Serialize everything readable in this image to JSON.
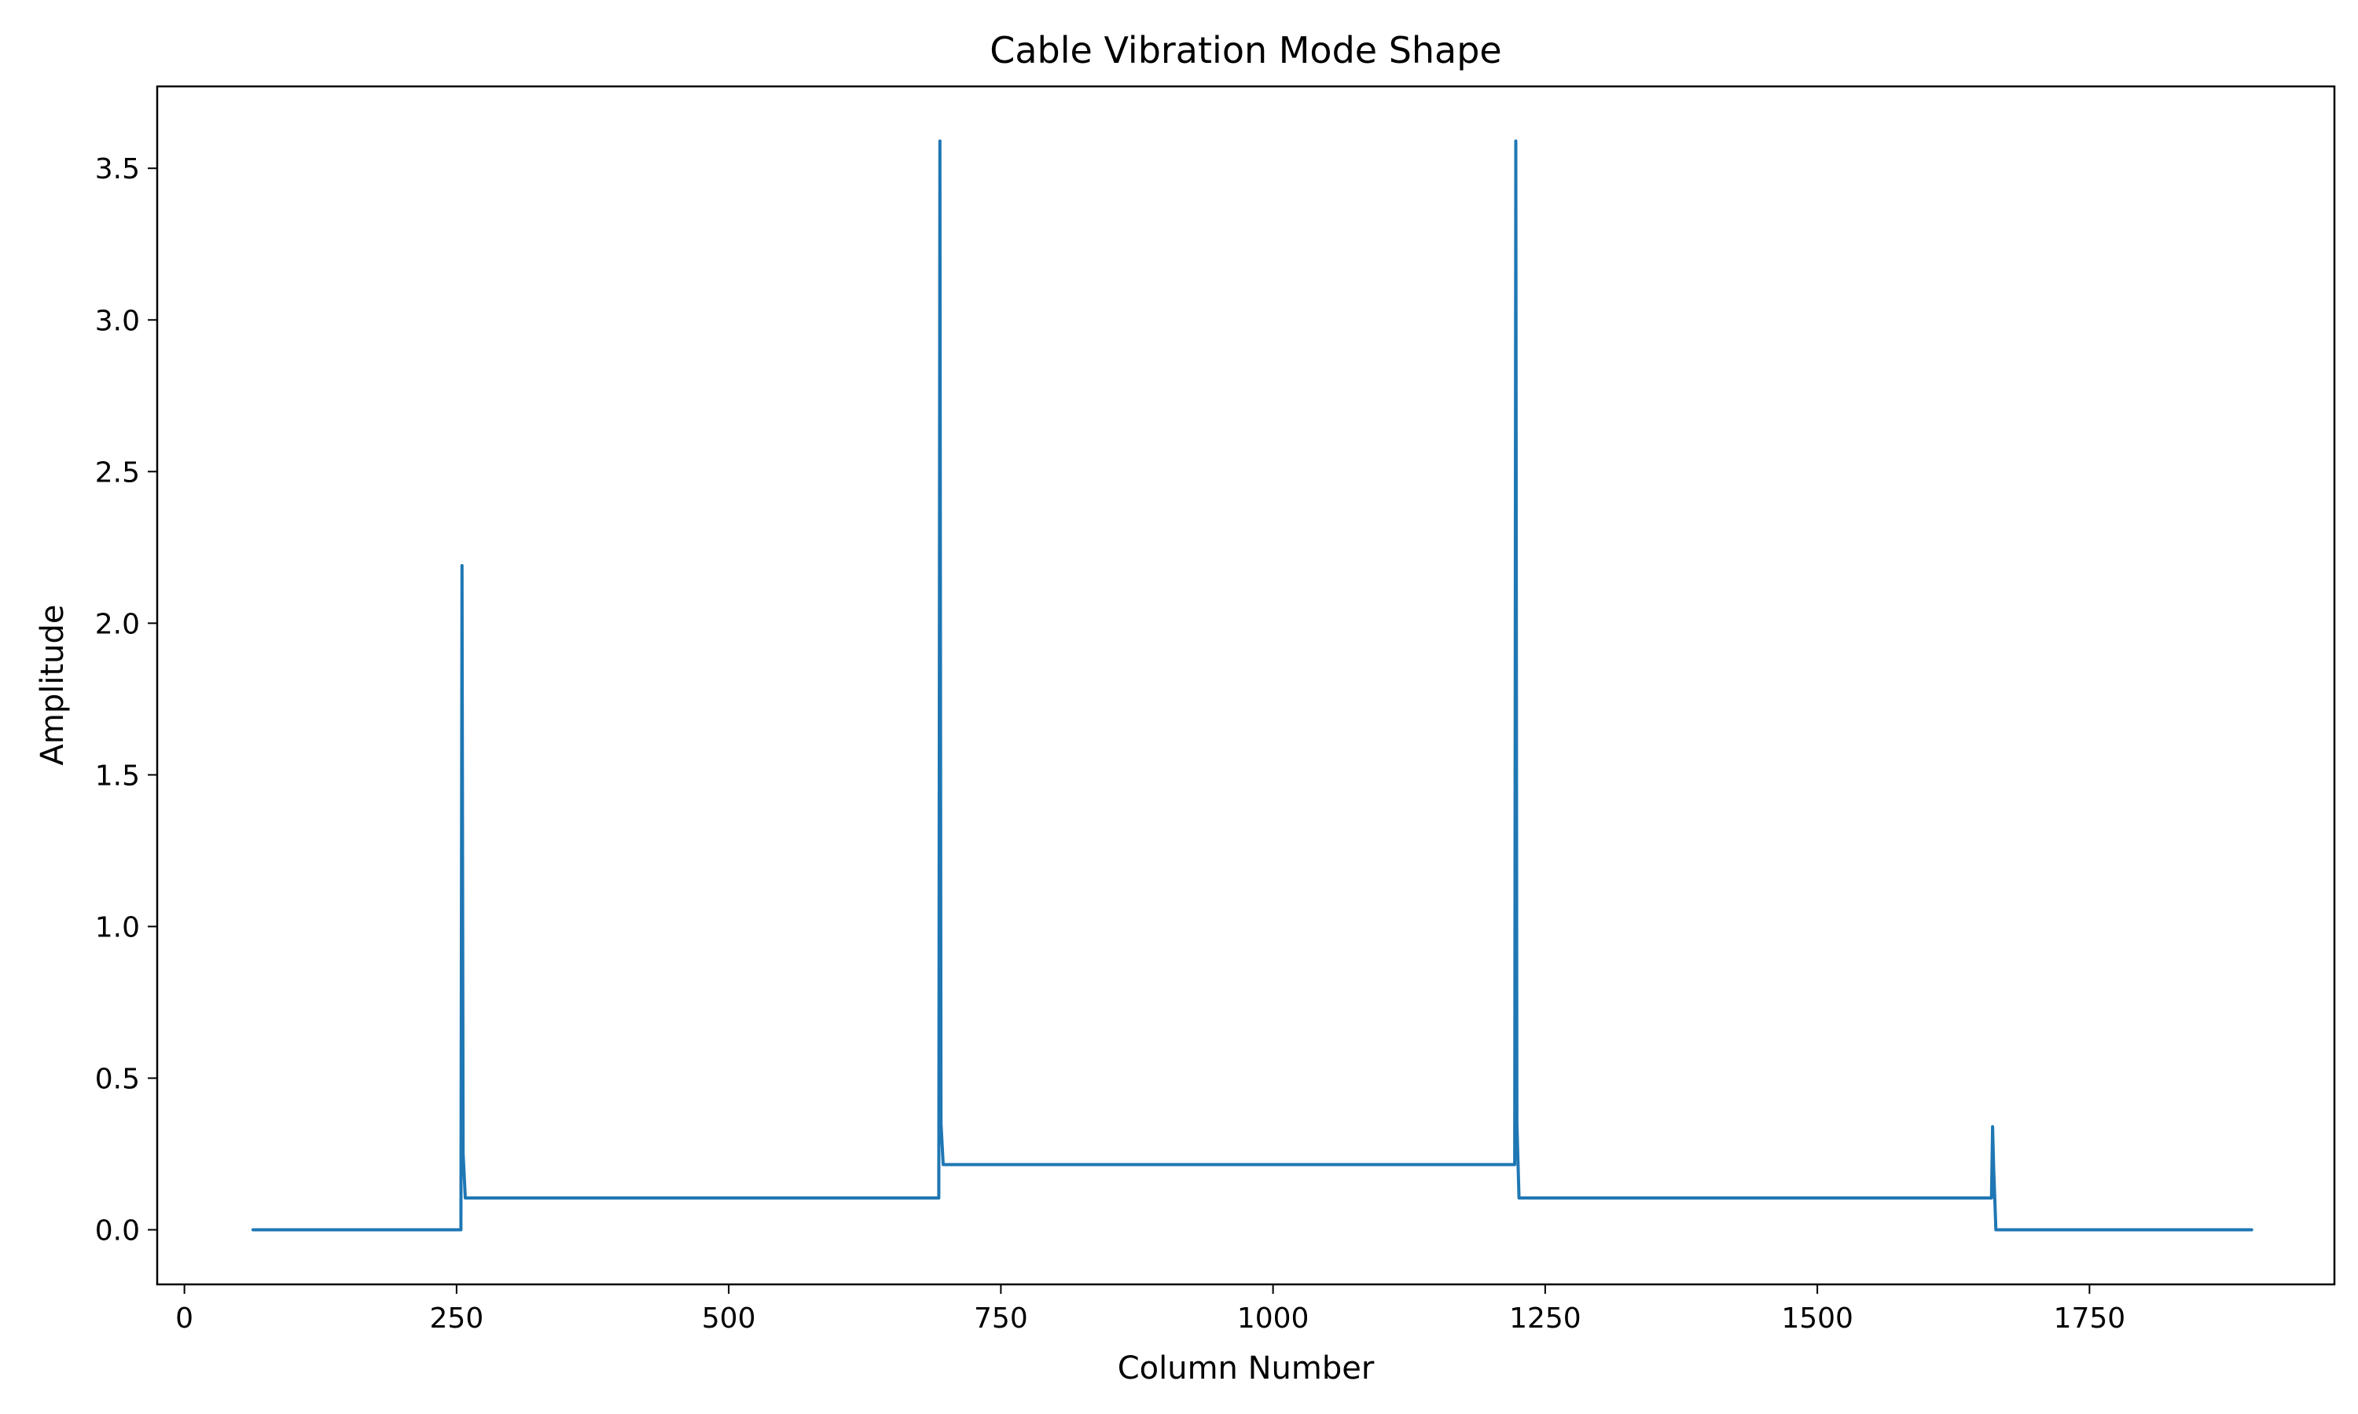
{
  "chart_data": {
    "type": "line",
    "title": "Cable Vibration Mode Shape",
    "xlabel": "Column Number",
    "ylabel": "Amplitude",
    "xlim": [
      -25,
      1975
    ],
    "ylim": [
      -0.18,
      3.77
    ],
    "x_ticks": [
      0,
      250,
      500,
      750,
      1000,
      1250,
      1500,
      1750
    ],
    "y_ticks": [
      0.0,
      0.5,
      1.0,
      1.5,
      2.0,
      2.5,
      3.0,
      3.5
    ],
    "x_tick_labels": [
      "0",
      "250",
      "500",
      "750",
      "1000",
      "1250",
      "1500",
      "1750"
    ],
    "y_tick_labels": [
      "0.0",
      "0.5",
      "1.0",
      "1.5",
      "2.0",
      "2.5",
      "3.0",
      "3.5"
    ],
    "grid": false,
    "legend": "none",
    "series": [
      {
        "color": "#1f77b4",
        "x": [
          63,
          254,
          255,
          256,
          258,
          693,
          694,
          695,
          697,
          1222,
          1223,
          1224,
          1226,
          1660,
          1661,
          1662,
          1664,
          1899
        ],
        "y": [
          0.0,
          0.0,
          2.19,
          0.25,
          0.105,
          0.105,
          3.59,
          0.35,
          0.215,
          0.215,
          3.59,
          0.35,
          0.105,
          0.105,
          0.34,
          0.2,
          0.0,
          0.0
        ]
      }
    ]
  }
}
